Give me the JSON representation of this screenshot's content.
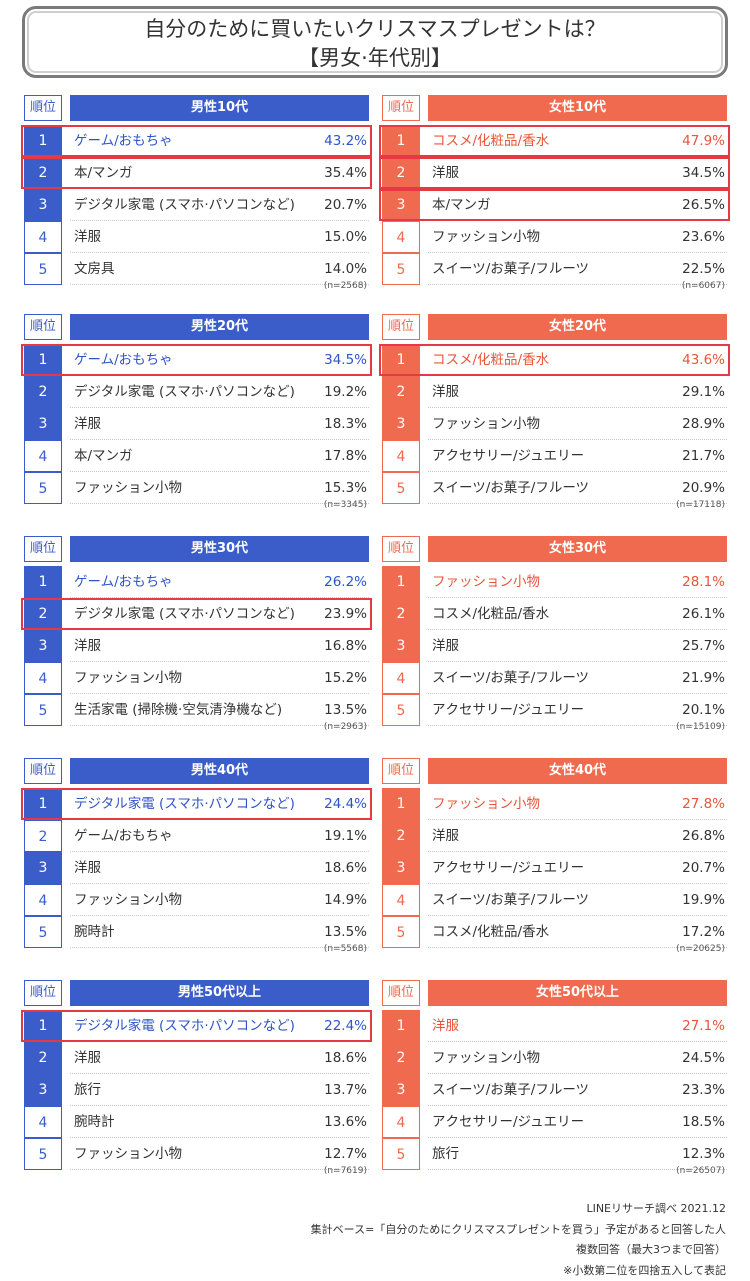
{
  "title": {
    "line1": "自分のために買いたいクリスマスプレゼントは？",
    "line2": "【男女·年代別】"
  },
  "rank_header": "順位",
  "chart_data": [
    {
      "type": "table",
      "gender": "male",
      "title": "男性10代",
      "n": "(n=2568)",
      "rows": [
        {
          "rank": "1",
          "item": "ゲーム/おもちゃ",
          "value": "43.2%"
        },
        {
          "rank": "2",
          "item": "本/マンガ",
          "value": "35.4%"
        },
        {
          "rank": "3",
          "item": "デジタル家電 (スマホ·パソコンなど)",
          "value": "20.7%"
        },
        {
          "rank": "4",
          "item": "洋服",
          "value": "15.0%"
        },
        {
          "rank": "5",
          "item": "文房具",
          "value": "14.0%"
        }
      ],
      "filled_ranks": [
        1,
        2,
        3
      ],
      "highlight": [
        1,
        2
      ]
    },
    {
      "type": "table",
      "gender": "female",
      "title": "女性10代",
      "n": "(n=6067)",
      "rows": [
        {
          "rank": "1",
          "item": "コスメ/化粧品/香水",
          "value": "47.9%"
        },
        {
          "rank": "2",
          "item": "洋服",
          "value": "34.5%"
        },
        {
          "rank": "3",
          "item": "本/マンガ",
          "value": "26.5%"
        },
        {
          "rank": "4",
          "item": "ファッション小物",
          "value": "23.6%"
        },
        {
          "rank": "5",
          "item": "スイーツ/お菓子/フルーツ",
          "value": "22.5%"
        }
      ],
      "filled_ranks": [
        1,
        2,
        3
      ],
      "highlight": [
        1,
        2,
        3
      ]
    },
    {
      "type": "table",
      "gender": "male",
      "title": "男性20代",
      "n": "(n=3345)",
      "rows": [
        {
          "rank": "1",
          "item": "ゲーム/おもちゃ",
          "value": "34.5%"
        },
        {
          "rank": "2",
          "item": "デジタル家電 (スマホ·パソコンなど)",
          "value": "19.2%"
        },
        {
          "rank": "3",
          "item": "洋服",
          "value": "18.3%"
        },
        {
          "rank": "4",
          "item": "本/マンガ",
          "value": "17.8%"
        },
        {
          "rank": "5",
          "item": "ファッション小物",
          "value": "15.3%"
        }
      ],
      "filled_ranks": [
        1,
        2,
        3
      ],
      "highlight": [
        1
      ]
    },
    {
      "type": "table",
      "gender": "female",
      "title": "女性20代",
      "n": "(n=17118)",
      "rows": [
        {
          "rank": "1",
          "item": "コスメ/化粧品/香水",
          "value": "43.6%"
        },
        {
          "rank": "2",
          "item": "洋服",
          "value": "29.1%"
        },
        {
          "rank": "3",
          "item": "ファッション小物",
          "value": "28.9%"
        },
        {
          "rank": "4",
          "item": "アクセサリー/ジュエリー",
          "value": "21.7%"
        },
        {
          "rank": "5",
          "item": "スイーツ/お菓子/フルーツ",
          "value": "20.9%"
        }
      ],
      "filled_ranks": [
        1,
        2,
        3
      ],
      "highlight": [
        1
      ]
    },
    {
      "type": "table",
      "gender": "male",
      "title": "男性30代",
      "n": "(n=2963)",
      "rows": [
        {
          "rank": "1",
          "item": "ゲーム/おもちゃ",
          "value": "26.2%"
        },
        {
          "rank": "2",
          "item": "デジタル家電 (スマホ·パソコンなど)",
          "value": "23.9%"
        },
        {
          "rank": "3",
          "item": "洋服",
          "value": "16.8%"
        },
        {
          "rank": "4",
          "item": "ファッション小物",
          "value": "15.2%"
        },
        {
          "rank": "5",
          "item": "生活家電 (掃除機·空気清浄機など)",
          "value": "13.5%"
        }
      ],
      "filled_ranks": [
        1,
        2,
        3
      ],
      "highlight": [
        2
      ]
    },
    {
      "type": "table",
      "gender": "female",
      "title": "女性30代",
      "n": "(n=15109)",
      "rows": [
        {
          "rank": "1",
          "item": "ファッション小物",
          "value": "28.1%"
        },
        {
          "rank": "2",
          "item": "コスメ/化粧品/香水",
          "value": "26.1%"
        },
        {
          "rank": "3",
          "item": "洋服",
          "value": "25.7%"
        },
        {
          "rank": "4",
          "item": "スイーツ/お菓子/フルーツ",
          "value": "21.9%"
        },
        {
          "rank": "5",
          "item": "アクセサリー/ジュエリー",
          "value": "20.1%"
        }
      ],
      "filled_ranks": [
        1,
        2,
        3
      ],
      "highlight": []
    },
    {
      "type": "table",
      "gender": "male",
      "title": "男性40代",
      "n": "(n=5568)",
      "rows": [
        {
          "rank": "1",
          "item": "デジタル家電 (スマホ·パソコンなど)",
          "value": "24.4%"
        },
        {
          "rank": "2",
          "item": "ゲーム/おもちゃ",
          "value": "19.1%"
        },
        {
          "rank": "3",
          "item": "洋服",
          "value": "18.6%"
        },
        {
          "rank": "4",
          "item": "ファッション小物",
          "value": "14.9%"
        },
        {
          "rank": "5",
          "item": "腕時計",
          "value": "13.5%"
        }
      ],
      "filled_ranks": [
        1,
        3
      ],
      "highlight": [
        1
      ]
    },
    {
      "type": "table",
      "gender": "female",
      "title": "女性40代",
      "n": "(n=20625)",
      "rows": [
        {
          "rank": "1",
          "item": "ファッション小物",
          "value": "27.8%"
        },
        {
          "rank": "2",
          "item": "洋服",
          "value": "26.8%"
        },
        {
          "rank": "3",
          "item": "アクセサリー/ジュエリー",
          "value": "20.7%"
        },
        {
          "rank": "4",
          "item": "スイーツ/お菓子/フルーツ",
          "value": "19.9%"
        },
        {
          "rank": "5",
          "item": "コスメ/化粧品/香水",
          "value": "17.2%"
        }
      ],
      "filled_ranks": [
        1,
        2,
        3
      ],
      "highlight": []
    },
    {
      "type": "table",
      "gender": "male",
      "title": "男性50代以上",
      "n": "(n=7619)",
      "rows": [
        {
          "rank": "1",
          "item": "デジタル家電 (スマホ·パソコンなど)",
          "value": "22.4%"
        },
        {
          "rank": "2",
          "item": "洋服",
          "value": "18.6%"
        },
        {
          "rank": "3",
          "item": "旅行",
          "value": "13.7%"
        },
        {
          "rank": "4",
          "item": "腕時計",
          "value": "13.6%"
        },
        {
          "rank": "5",
          "item": "ファッション小物",
          "value": "12.7%"
        }
      ],
      "filled_ranks": [
        1,
        2,
        3
      ],
      "highlight": [
        1
      ]
    },
    {
      "type": "table",
      "gender": "female",
      "title": "女性50代以上",
      "n": "(n=26507)",
      "rows": [
        {
          "rank": "1",
          "item": "洋服",
          "value": "27.1%"
        },
        {
          "rank": "2",
          "item": "ファッション小物",
          "value": "24.5%"
        },
        {
          "rank": "3",
          "item": "スイーツ/お菓子/フルーツ",
          "value": "23.3%"
        },
        {
          "rank": "4",
          "item": "アクセサリー/ジュエリー",
          "value": "18.5%"
        },
        {
          "rank": "5",
          "item": "旅行",
          "value": "12.3%"
        }
      ],
      "filled_ranks": [
        1,
        2,
        3
      ],
      "highlight": []
    }
  ],
  "footer": {
    "source": "LINEリサーチ調べ 2021.12",
    "base": "集計ベース=「自分のためにクリスマスプレゼントを買う」予定があると回答した人",
    "multi": "複数回答（最大3つまで回答）",
    "note": "※小数第二位を四捨五入して表記"
  },
  "colors": {
    "male": "#3b5dc9",
    "female": "#ef6a4f",
    "highlight": "#e63946"
  }
}
